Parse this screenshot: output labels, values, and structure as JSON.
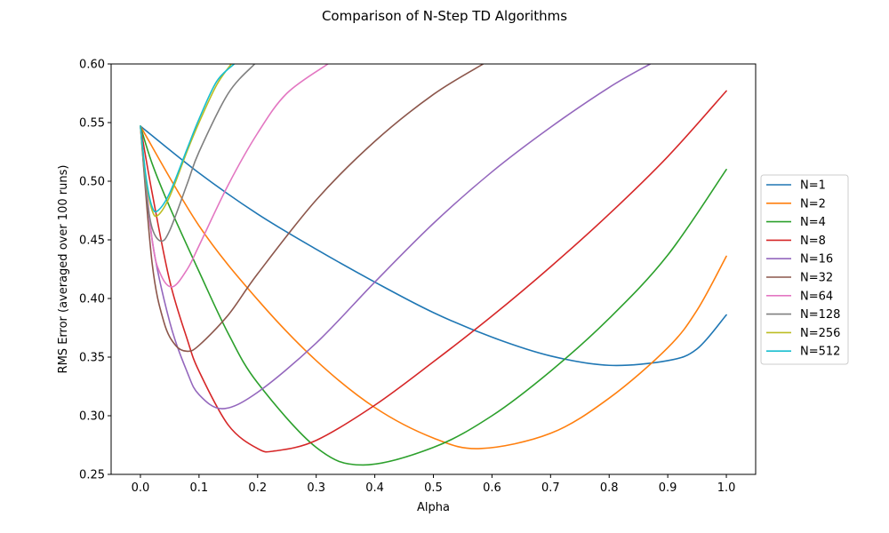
{
  "chart_data": {
    "type": "line",
    "title": "Comparison of N-Step TD Algorithms",
    "xlabel": "Alpha",
    "ylabel": "RMS Error (averaged over 100 runs)",
    "xlim": [
      -0.05,
      1.05
    ],
    "ylim": [
      0.25,
      0.6
    ],
    "xticks": [
      0.0,
      0.1,
      0.2,
      0.3,
      0.4,
      0.5,
      0.6,
      0.7,
      0.8,
      0.9,
      1.0
    ],
    "xtick_labels": [
      "0.0",
      "0.1",
      "0.2",
      "0.3",
      "0.4",
      "0.5",
      "0.6",
      "0.7",
      "0.8",
      "0.9",
      "1.0"
    ],
    "yticks": [
      0.25,
      0.3,
      0.35,
      0.4,
      0.45,
      0.5,
      0.55,
      0.6
    ],
    "ytick_labels": [
      "0.25",
      "0.30",
      "0.35",
      "0.40",
      "0.45",
      "0.50",
      "0.55",
      "0.60"
    ],
    "grid": false,
    "legend_position": "right-outside",
    "series": [
      {
        "name": "N=1",
        "color": "#1f77b4",
        "x": [
          0.0,
          0.1,
          0.2,
          0.3,
          0.4,
          0.5,
          0.6,
          0.7,
          0.8,
          0.9,
          0.95,
          1.0
        ],
        "y": [
          0.547,
          0.507,
          0.472,
          0.442,
          0.414,
          0.388,
          0.367,
          0.351,
          0.343,
          0.347,
          0.357,
          0.386
        ]
      },
      {
        "name": "N=2",
        "color": "#ff7f0e",
        "x": [
          0.0,
          0.1,
          0.2,
          0.3,
          0.4,
          0.5,
          0.58,
          0.7,
          0.8,
          0.9,
          0.95,
          1.0
        ],
        "y": [
          0.547,
          0.462,
          0.399,
          0.347,
          0.307,
          0.281,
          0.272,
          0.285,
          0.315,
          0.358,
          0.39,
          0.436
        ]
      },
      {
        "name": "N=4",
        "color": "#2ca02c",
        "x": [
          0.0,
          0.02,
          0.05,
          0.1,
          0.15,
          0.2,
          0.3,
          0.38,
          0.5,
          0.6,
          0.7,
          0.8,
          0.9,
          1.0
        ],
        "y": [
          0.547,
          0.515,
          0.478,
          0.423,
          0.37,
          0.328,
          0.273,
          0.258,
          0.273,
          0.3,
          0.338,
          0.383,
          0.437,
          0.51
        ]
      },
      {
        "name": "N=8",
        "color": "#d62728",
        "x": [
          0.0,
          0.02,
          0.05,
          0.08,
          0.1,
          0.15,
          0.2,
          0.23,
          0.3,
          0.4,
          0.5,
          0.6,
          0.7,
          0.8,
          0.9,
          1.0
        ],
        "y": [
          0.547,
          0.49,
          0.415,
          0.365,
          0.338,
          0.292,
          0.272,
          0.27,
          0.279,
          0.309,
          0.346,
          0.385,
          0.427,
          0.472,
          0.521,
          0.577
        ]
      },
      {
        "name": "N=16",
        "color": "#9467bd",
        "x": [
          0.0,
          0.02,
          0.05,
          0.08,
          0.1,
          0.14,
          0.2,
          0.3,
          0.4,
          0.5,
          0.6,
          0.7,
          0.8,
          0.87
        ],
        "y": [
          0.547,
          0.45,
          0.38,
          0.337,
          0.318,
          0.306,
          0.32,
          0.362,
          0.414,
          0.464,
          0.508,
          0.546,
          0.58,
          0.6
        ]
      },
      {
        "name": "N=32",
        "color": "#8c564b",
        "x": [
          0.0,
          0.02,
          0.04,
          0.06,
          0.08,
          0.1,
          0.15,
          0.2,
          0.3,
          0.4,
          0.5,
          0.585
        ],
        "y": [
          0.547,
          0.43,
          0.38,
          0.36,
          0.355,
          0.36,
          0.386,
          0.421,
          0.484,
          0.534,
          0.574,
          0.6
        ]
      },
      {
        "name": "N=64",
        "color": "#e377c2",
        "x": [
          0.0,
          0.02,
          0.035,
          0.055,
          0.08,
          0.1,
          0.15,
          0.2,
          0.25,
          0.32
        ],
        "y": [
          0.547,
          0.45,
          0.42,
          0.41,
          0.425,
          0.445,
          0.497,
          0.541,
          0.575,
          0.6
        ]
      },
      {
        "name": "N=128",
        "color": "#7f7f7f",
        "x": [
          0.0,
          0.01,
          0.02,
          0.035,
          0.05,
          0.08,
          0.1,
          0.15,
          0.195
        ],
        "y": [
          0.547,
          0.49,
          0.46,
          0.449,
          0.458,
          0.498,
          0.525,
          0.575,
          0.6
        ]
      },
      {
        "name": "N=256",
        "color": "#bcbd22",
        "x": [
          0.0,
          0.01,
          0.02,
          0.03,
          0.05,
          0.08,
          0.1,
          0.13,
          0.155
        ],
        "y": [
          0.547,
          0.5,
          0.475,
          0.471,
          0.487,
          0.526,
          0.55,
          0.582,
          0.6
        ]
      },
      {
        "name": "N=512",
        "color": "#17becf",
        "x": [
          0.0,
          0.01,
          0.02,
          0.03,
          0.05,
          0.08,
          0.1,
          0.13,
          0.16
        ],
        "y": [
          0.547,
          0.502,
          0.478,
          0.475,
          0.49,
          0.528,
          0.553,
          0.585,
          0.6
        ]
      }
    ]
  }
}
